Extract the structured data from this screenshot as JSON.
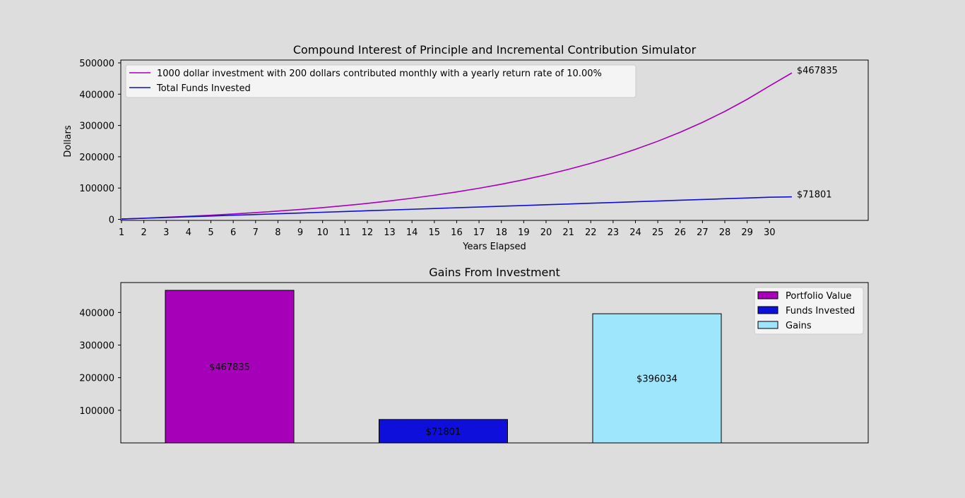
{
  "chart_data": [
    {
      "type": "line",
      "title": "Compound Interest of  Principle and Incremental Contribution Simulator",
      "xlabel": "Years Elapsed",
      "ylabel": "Dollars",
      "x_ticks": [
        "1",
        "2",
        "3",
        "4",
        "5",
        "6",
        "7",
        "8",
        "9",
        "10",
        "11",
        "12",
        "13",
        "14",
        "15",
        "16",
        "17",
        "18",
        "19",
        "20",
        "21",
        "22",
        "23",
        "24",
        "25",
        "26",
        "27",
        "28",
        "29",
        "30"
      ],
      "y_ticks": [
        "0",
        "100000",
        "200000",
        "300000",
        "400000",
        "500000"
      ],
      "ylim": [
        0,
        505000
      ],
      "legend_position": "upper-left",
      "series": [
        {
          "name": "1000 dollar investment with 200 dollars contributed monthly with a yearly return rate of 10.00%",
          "color": "#a600b8",
          "x": [
            1,
            2,
            3,
            4,
            5,
            6,
            7,
            8,
            9,
            10,
            11,
            12,
            13,
            14,
            15,
            16,
            17,
            18,
            19,
            20,
            21,
            22,
            23,
            24,
            25,
            26,
            27,
            28,
            29,
            30,
            31
          ],
          "values": [
            1000,
            3626,
            6527,
            9731,
            13271,
            17182,
            21502,
            26274,
            31546,
            37370,
            43803,
            50911,
            58762,
            67436,
            77018,
            87603,
            99297,
            112215,
            126485,
            142250,
            159665,
            178904,
            200157,
            223636,
            249573,
            278226,
            309879,
            344846,
            383474,
            426146,
            467835
          ],
          "end_label": "$467835"
        },
        {
          "name": "Total Funds Invested",
          "color": "#0f0fcf",
          "x": [
            1,
            2,
            3,
            4,
            5,
            6,
            7,
            8,
            9,
            10,
            11,
            12,
            13,
            14,
            15,
            16,
            17,
            18,
            19,
            20,
            21,
            22,
            23,
            24,
            25,
            26,
            27,
            28,
            29,
            30,
            31
          ],
          "values": [
            1000,
            3400,
            5800,
            8200,
            10600,
            13000,
            15400,
            17800,
            20200,
            22600,
            25000,
            27400,
            29800,
            32200,
            34600,
            37000,
            39400,
            41800,
            44200,
            46600,
            49000,
            51400,
            53800,
            56200,
            58600,
            61000,
            63400,
            65800,
            68200,
            70600,
            71801
          ],
          "end_label": "$71801"
        }
      ]
    },
    {
      "type": "bar",
      "title": "Gains From Investment",
      "y_ticks": [
        "100000",
        "200000",
        "300000",
        "400000"
      ],
      "ylim": [
        0,
        490000
      ],
      "legend_position": "upper-right",
      "categories": [
        "Portfolio Value",
        "Funds Invested",
        "Gains"
      ],
      "values": [
        467835,
        71801,
        396034
      ],
      "labels": [
        "$467835",
        "$71801",
        "$396034"
      ],
      "colors": [
        "#a600b8",
        "#0f0fdc",
        "#9de6fc"
      ]
    }
  ]
}
